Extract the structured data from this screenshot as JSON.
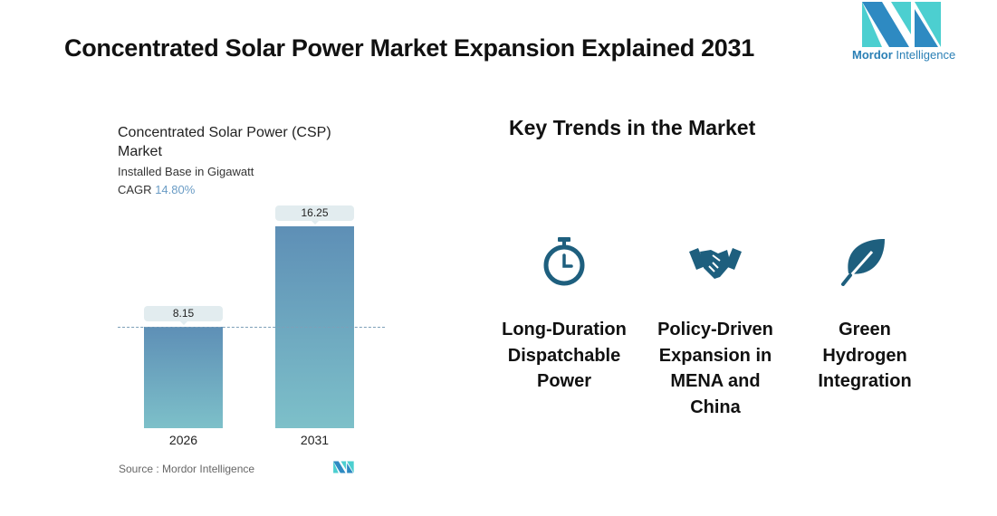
{
  "title": "Concentrated Solar Power Market Expansion Explained 2031",
  "logo": {
    "brand": "Mordor",
    "brand2": "Intelligence",
    "colors": [
      "#2e8ac2",
      "#4ccfd0"
    ]
  },
  "chart_data": {
    "type": "bar",
    "title": "Concentrated Solar Power (CSP) Market",
    "subtitle": "Installed Base in Gigawatt",
    "cagr_label": "CAGR",
    "cagr_value": "14.80%",
    "categories": [
      "2026",
      "2031"
    ],
    "values": [
      8.15,
      16.25
    ],
    "value_labels": [
      "8.15",
      "16.25"
    ],
    "ylim": [
      0,
      16.25
    ],
    "grid": false,
    "bar_gradient": [
      "#5e8fb6",
      "#7dc0c9"
    ],
    "source": "Source :  Mordor Intelligence"
  },
  "trends": {
    "title": "Key Trends in the Market",
    "icon_color": "#1e5f7e",
    "items": [
      {
        "icon": "stopwatch-icon",
        "label": "Long-Duration Dispatchable Power"
      },
      {
        "icon": "handshake-icon",
        "label": "Policy-Driven Expansion in MENA and China"
      },
      {
        "icon": "leaf-icon",
        "label": "Green Hydrogen Integration"
      }
    ]
  }
}
